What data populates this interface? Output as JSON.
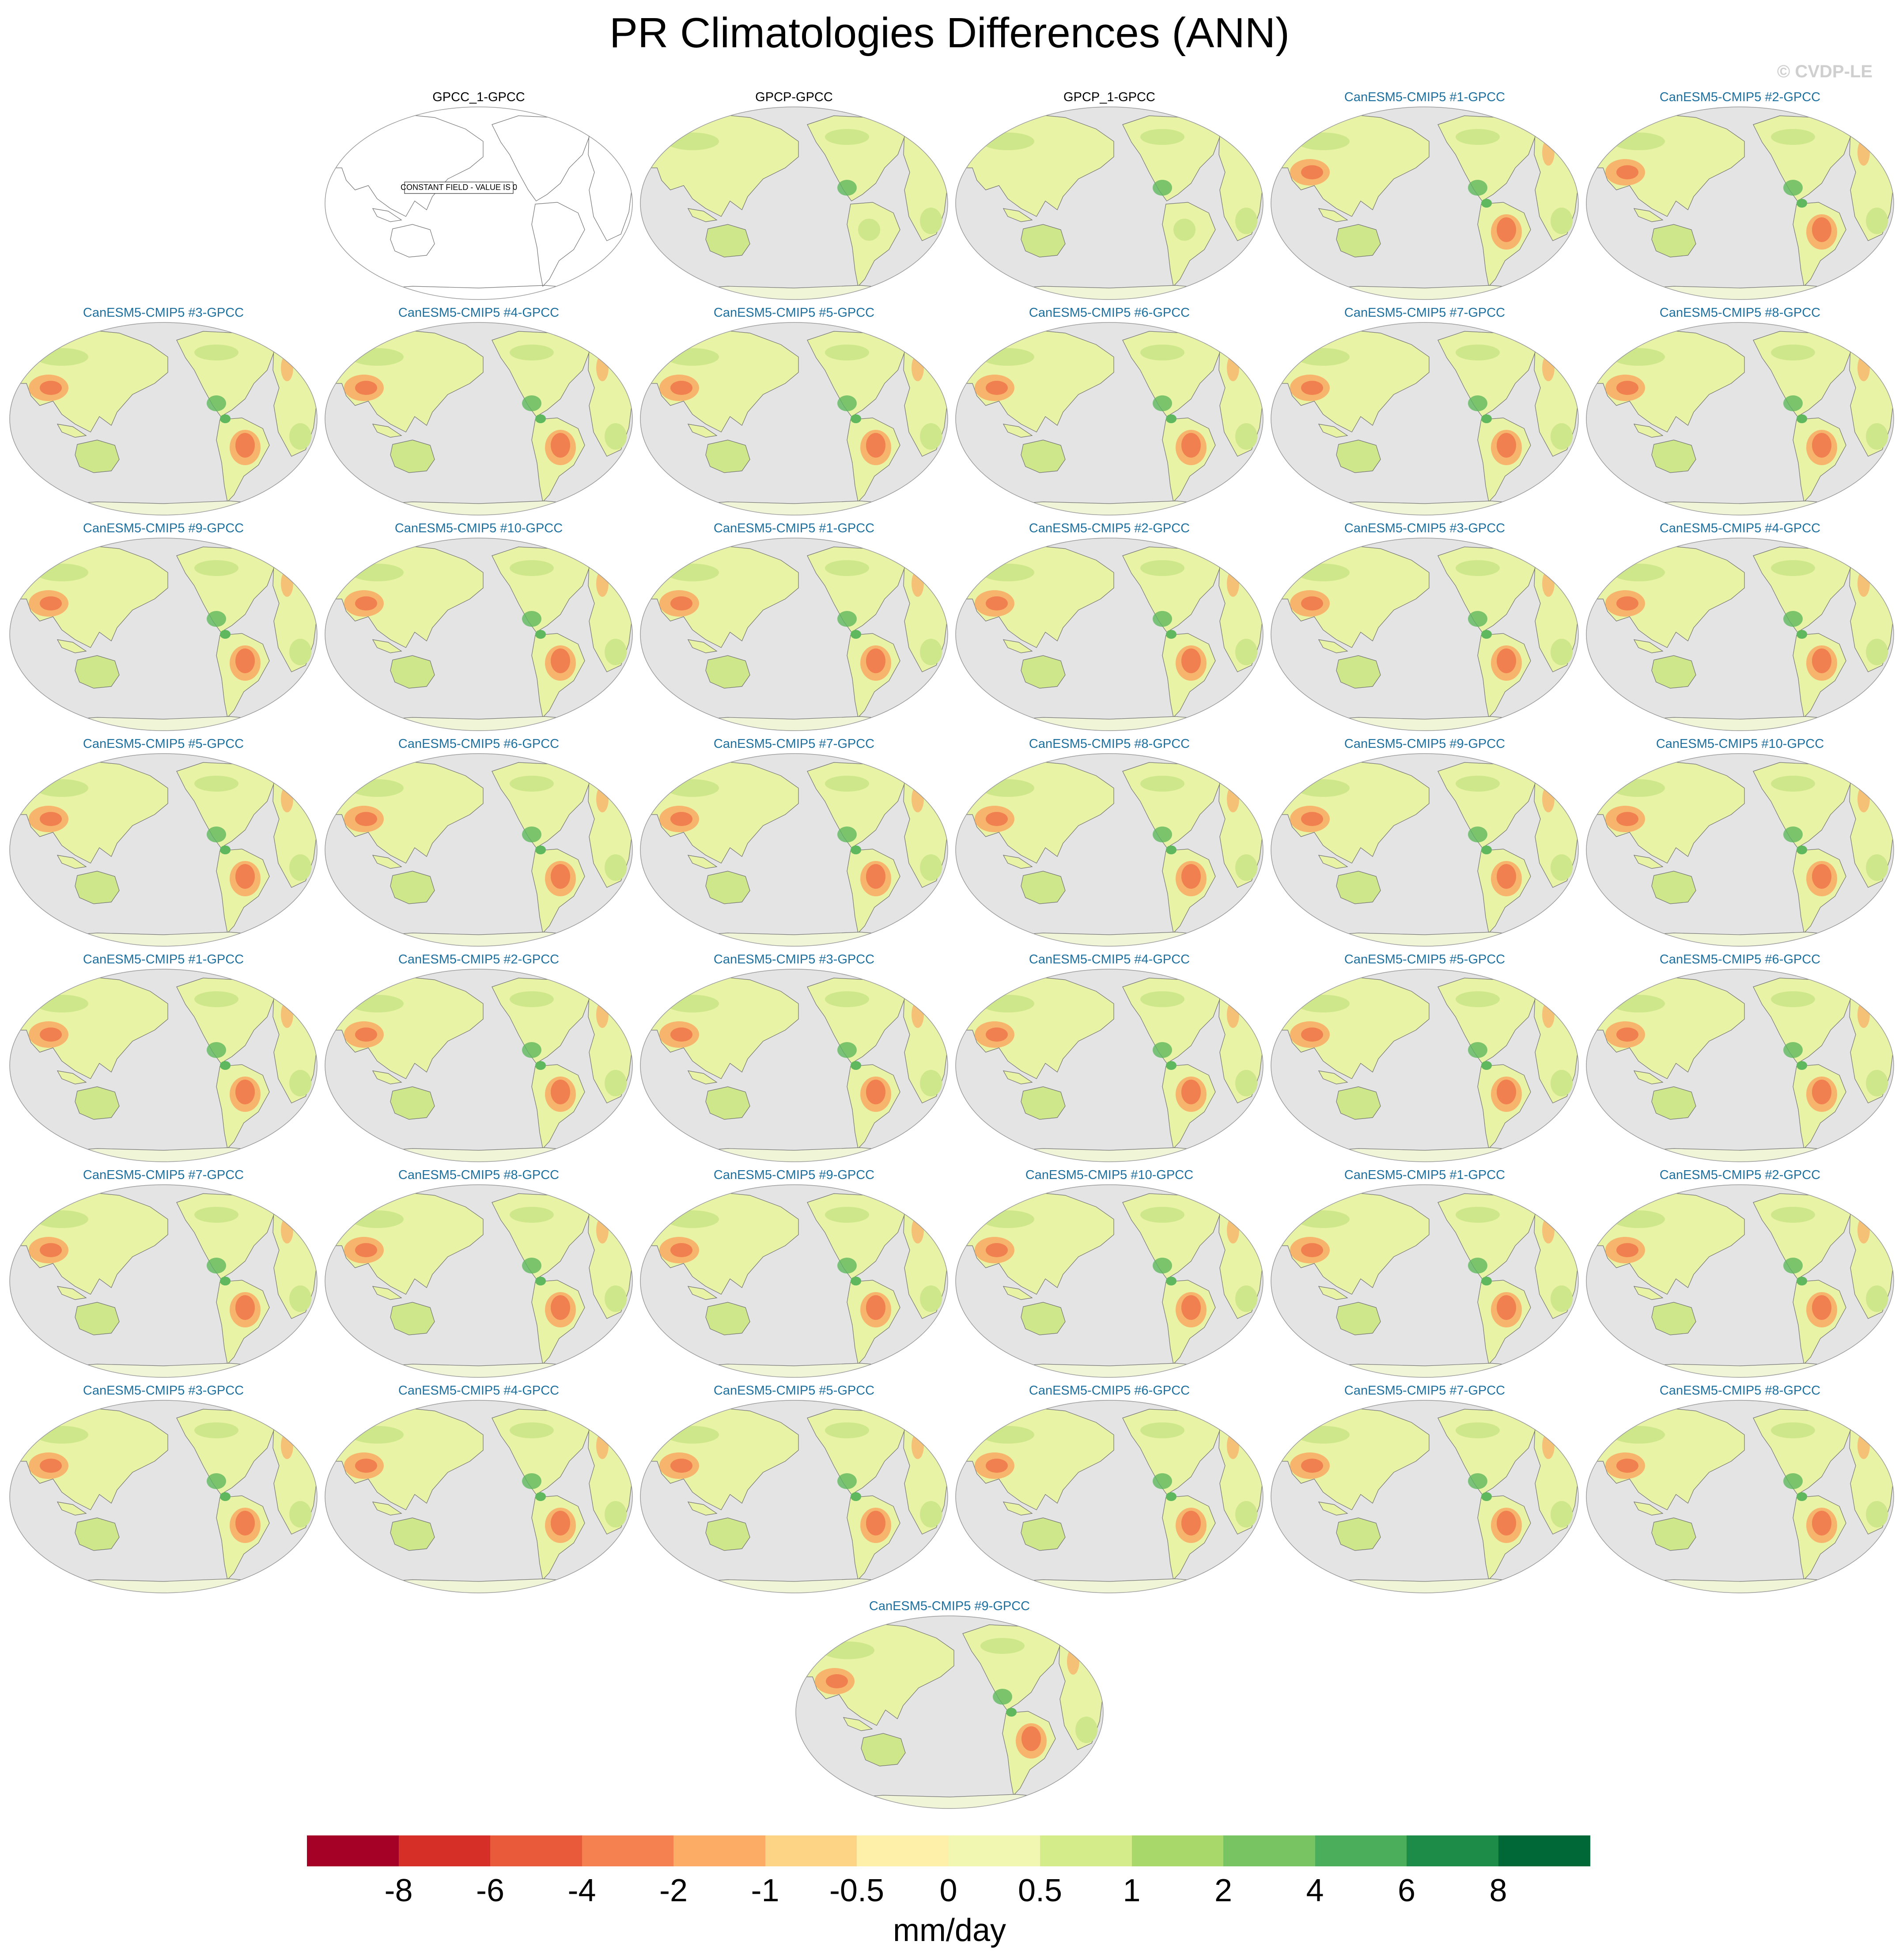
{
  "title": "PR Climatologies Differences (ANN)",
  "watermark": "© CVDP-LE",
  "constant_field_note": "CONSTANT FIELD - VALUE IS 0",
  "panels": [
    {
      "label": "GPCC_1-GPCC",
      "kind": "obs",
      "field": "constant"
    },
    {
      "label": "GPCP-GPCC",
      "kind": "obs",
      "field": "obs"
    },
    {
      "label": "GPCP_1-GPCC",
      "kind": "obs",
      "field": "obs"
    },
    {
      "label": "CanESM5-CMIP5 #1-GPCC",
      "kind": "model",
      "field": "model"
    },
    {
      "label": "CanESM5-CMIP5 #2-GPCC",
      "kind": "model",
      "field": "model"
    },
    {
      "label": "CanESM5-CMIP5 #3-GPCC",
      "kind": "model",
      "field": "model"
    },
    {
      "label": "CanESM5-CMIP5 #4-GPCC",
      "kind": "model",
      "field": "model"
    },
    {
      "label": "CanESM5-CMIP5 #5-GPCC",
      "kind": "model",
      "field": "model"
    },
    {
      "label": "CanESM5-CMIP5 #6-GPCC",
      "kind": "model",
      "field": "model"
    },
    {
      "label": "CanESM5-CMIP5 #7-GPCC",
      "kind": "model",
      "field": "model"
    },
    {
      "label": "CanESM5-CMIP5 #8-GPCC",
      "kind": "model",
      "field": "model"
    },
    {
      "label": "CanESM5-CMIP5 #9-GPCC",
      "kind": "model",
      "field": "model"
    },
    {
      "label": "CanESM5-CMIP5 #10-GPCC",
      "kind": "model",
      "field": "model"
    },
    {
      "label": "CanESM5-CMIP5 #1-GPCC",
      "kind": "model",
      "field": "model"
    },
    {
      "label": "CanESM5-CMIP5 #2-GPCC",
      "kind": "model",
      "field": "model"
    },
    {
      "label": "CanESM5-CMIP5 #3-GPCC",
      "kind": "model",
      "field": "model"
    },
    {
      "label": "CanESM5-CMIP5 #4-GPCC",
      "kind": "model",
      "field": "model"
    },
    {
      "label": "CanESM5-CMIP5 #5-GPCC",
      "kind": "model",
      "field": "model"
    },
    {
      "label": "CanESM5-CMIP5 #6-GPCC",
      "kind": "model",
      "field": "model"
    },
    {
      "label": "CanESM5-CMIP5 #7-GPCC",
      "kind": "model",
      "field": "model"
    },
    {
      "label": "CanESM5-CMIP5 #8-GPCC",
      "kind": "model",
      "field": "model"
    },
    {
      "label": "CanESM5-CMIP5 #9-GPCC",
      "kind": "model",
      "field": "model"
    },
    {
      "label": "CanESM5-CMIP5 #10-GPCC",
      "kind": "model",
      "field": "model"
    },
    {
      "label": "CanESM5-CMIP5 #1-GPCC",
      "kind": "model",
      "field": "model"
    },
    {
      "label": "CanESM5-CMIP5 #2-GPCC",
      "kind": "model",
      "field": "model"
    },
    {
      "label": "CanESM5-CMIP5 #3-GPCC",
      "kind": "model",
      "field": "model"
    },
    {
      "label": "CanESM5-CMIP5 #4-GPCC",
      "kind": "model",
      "field": "model"
    },
    {
      "label": "CanESM5-CMIP5 #5-GPCC",
      "kind": "model",
      "field": "model"
    },
    {
      "label": "CanESM5-CMIP5 #6-GPCC",
      "kind": "model",
      "field": "model"
    },
    {
      "label": "CanESM5-CMIP5 #7-GPCC",
      "kind": "model",
      "field": "model"
    },
    {
      "label": "CanESM5-CMIP5 #8-GPCC",
      "kind": "model",
      "field": "model"
    },
    {
      "label": "CanESM5-CMIP5 #9-GPCC",
      "kind": "model",
      "field": "model"
    },
    {
      "label": "CanESM5-CMIP5 #10-GPCC",
      "kind": "model",
      "field": "model"
    },
    {
      "label": "CanESM5-CMIP5 #1-GPCC",
      "kind": "model",
      "field": "model"
    },
    {
      "label": "CanESM5-CMIP5 #2-GPCC",
      "kind": "model",
      "field": "model"
    },
    {
      "label": "CanESM5-CMIP5 #3-GPCC",
      "kind": "model",
      "field": "model"
    },
    {
      "label": "CanESM5-CMIP5 #4-GPCC",
      "kind": "model",
      "field": "model"
    },
    {
      "label": "CanESM5-CMIP5 #5-GPCC",
      "kind": "model",
      "field": "model"
    },
    {
      "label": "CanESM5-CMIP5 #6-GPCC",
      "kind": "model",
      "field": "model"
    },
    {
      "label": "CanESM5-CMIP5 #7-GPCC",
      "kind": "model",
      "field": "model"
    },
    {
      "label": "CanESM5-CMIP5 #8-GPCC",
      "kind": "model",
      "field": "model"
    },
    {
      "label": "CanESM5-CMIP5 #9-GPCC",
      "kind": "model",
      "field": "model"
    }
  ],
  "colorbar": {
    "units": "mm/day",
    "labels": [
      "-8",
      "-6",
      "-4",
      "-2",
      "-1",
      "-0.5",
      "0",
      "0.5",
      "1",
      "2",
      "4",
      "6",
      "8"
    ],
    "colors": [
      "#a50026",
      "#d62f27",
      "#e85a3a",
      "#f4814f",
      "#fcac64",
      "#fdd485",
      "#fef0a8",
      "#f1f7b1",
      "#d4ec8a",
      "#a9d86a",
      "#79c462",
      "#4bae5b",
      "#1c8c48",
      "#006837"
    ]
  },
  "map_colors": {
    "ocean": "#e4e4e4",
    "coast": "#707070",
    "land_base": "#e9f3a5",
    "land_green": "#cde78a",
    "land_dry": "#f7b46c",
    "land_hot": "#f08050",
    "land_wet": "#5fb85e"
  }
}
